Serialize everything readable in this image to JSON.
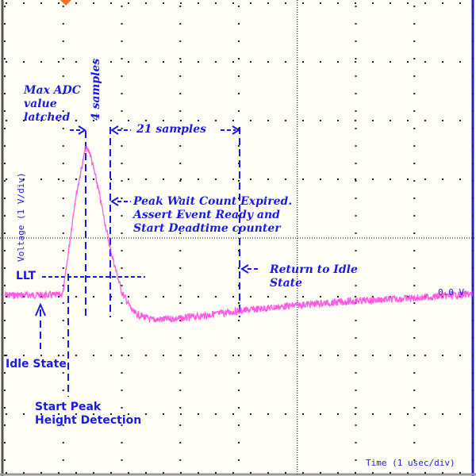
{
  "chart_data": {
    "type": "line",
    "xlabel": "Time (1 usec/div)",
    "ylabel": "Voltage (1 V/div)",
    "ref_label": "0.0 V",
    "xlim": [
      0,
      8
    ],
    "ylim": [
      -4.9,
      3.1
    ],
    "grid": true,
    "trace_color": "#ff33dd",
    "annotation_color": "#1a1ae0",
    "series": [
      {
        "x": [
          0,
          0.95,
          1.0,
          1.2,
          1.38,
          1.45,
          1.6,
          1.8,
          2.0,
          2.2,
          2.5,
          3.0,
          4.0,
          5.0,
          6.0,
          7.0,
          8.0
        ],
        "y": [
          0,
          0,
          0.05,
          1.6,
          2.5,
          2.45,
          1.8,
          0.8,
          0.05,
          -0.3,
          -0.42,
          -0.4,
          -0.27,
          -0.17,
          -0.1,
          -0.05,
          0.02
        ]
      }
    ],
    "annotations": {
      "max_adc": [
        "Max ADC",
        "value",
        "latched"
      ],
      "four_samples": "4 samples",
      "twentyone_samples": "21 samples",
      "peak_wait": [
        "Peak Wait Count Expired.",
        "Assert Event Ready and",
        "Start Deadtime counter"
      ],
      "return_idle": [
        "Return to Idle",
        "State"
      ],
      "llt": "LLT",
      "idle_state": "Idle State",
      "start_peak": [
        "Start Peak",
        "Height Detection"
      ]
    }
  }
}
